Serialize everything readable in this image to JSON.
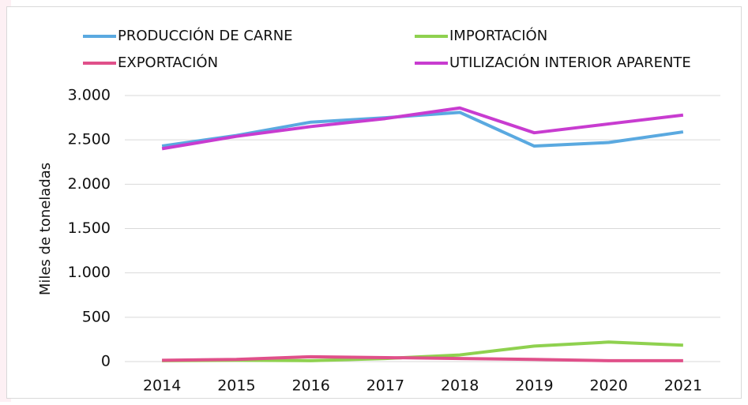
{
  "chart_data": {
    "type": "line",
    "y_label": "Miles de toneladas",
    "categories": [
      "2014",
      "2015",
      "2016",
      "2017",
      "2018",
      "2019",
      "2020",
      "2021"
    ],
    "series": [
      {
        "name": "PRODUCCIÓN DE CARNE",
        "color": "#5aa9e0",
        "values": [
          2430,
          2550,
          2700,
          2750,
          2810,
          2430,
          2470,
          2590
        ]
      },
      {
        "name": "IMPORTACIÓN",
        "color": "#8fd14f",
        "values": [
          10,
          15,
          10,
          35,
          75,
          175,
          220,
          185
        ]
      },
      {
        "name": "EXPORTACIÓN",
        "color": "#e0508a",
        "values": [
          15,
          25,
          55,
          45,
          35,
          25,
          10,
          10
        ]
      },
      {
        "name": "UTILIZACIÓN INTERIOR APARENTE",
        "color": "#c83cd0",
        "values": [
          2400,
          2540,
          2650,
          2740,
          2860,
          2580,
          2680,
          2780
        ]
      }
    ],
    "ylim": [
      0,
      3000
    ],
    "yticks": [
      0,
      500,
      {
        "value": 1000,
        "label": "1.000"
      },
      {
        "value": 1500,
        "label": "1.500"
      },
      {
        "value": 2000,
        "label": "2.000"
      },
      {
        "value": 2500,
        "label": "2.500"
      },
      {
        "value": 3000,
        "label": "3.000"
      }
    ],
    "grid": true,
    "legend": "top"
  }
}
